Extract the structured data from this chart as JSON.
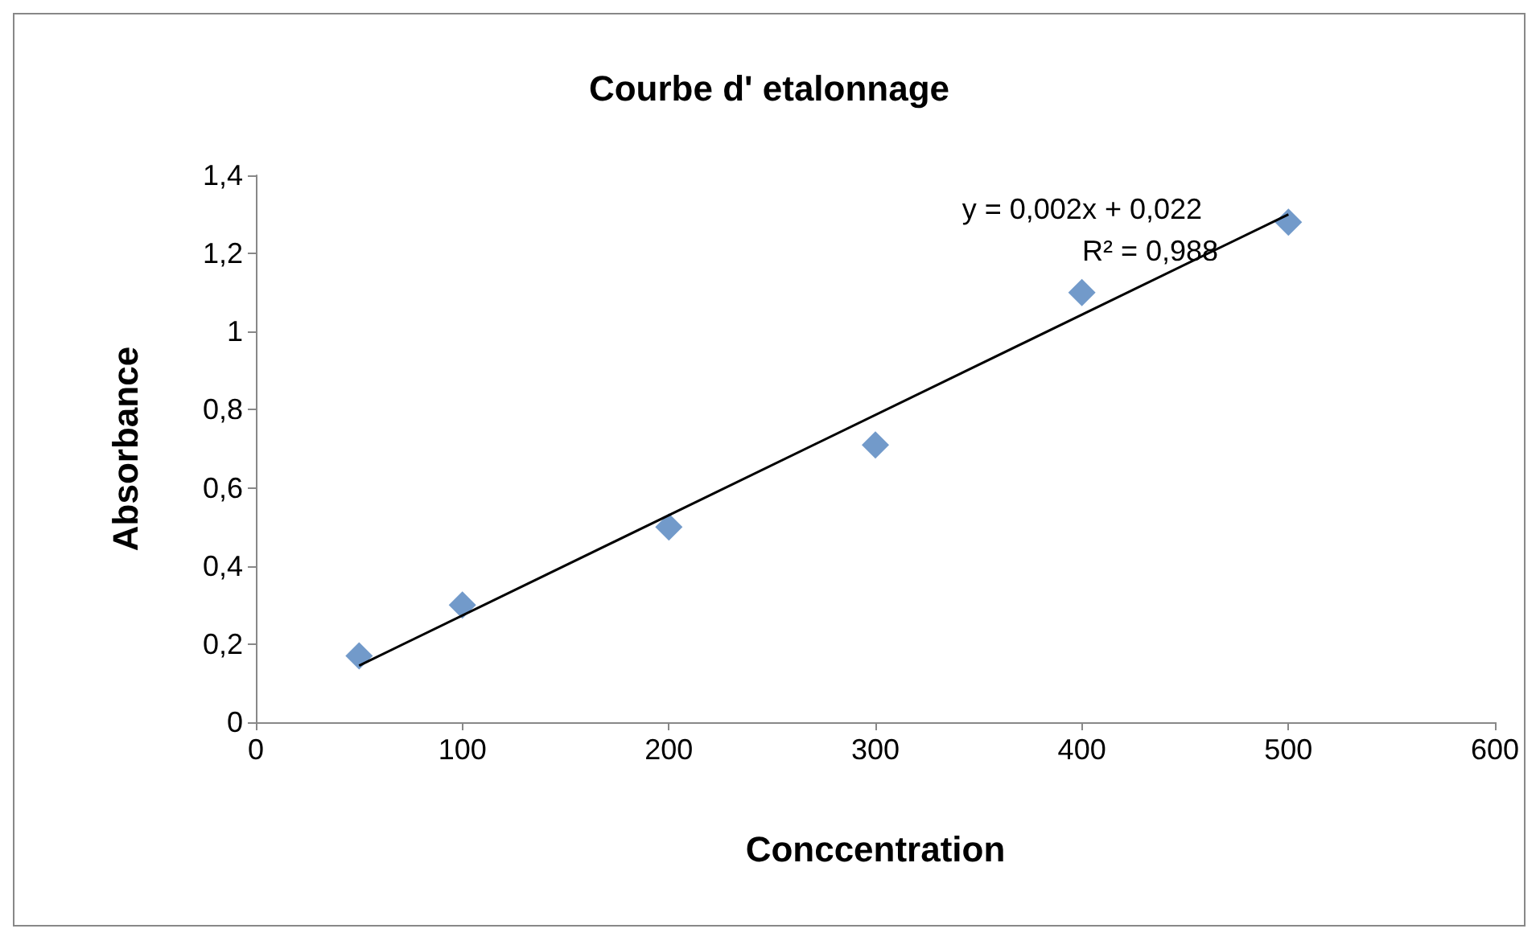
{
  "chart_data": {
    "type": "scatter",
    "title": "Courbe d' etalonnage",
    "xlabel": "Conccentration",
    "ylabel": "Absorbance",
    "x": [
      50,
      100,
      200,
      300,
      400,
      500
    ],
    "series": [
      {
        "type": "scatter",
        "color": "#4f81bd",
        "marker": "diamond",
        "values": [
          0.17,
          0.3,
          0.5,
          0.71,
          1.1,
          1.28
        ]
      },
      {
        "type": "line",
        "color": "#000000",
        "marker": "none",
        "x": [
          50,
          500
        ],
        "values": [
          0.145,
          1.3
        ]
      }
    ],
    "annotations": [
      "y = 0,002x + 0,022",
      "R² = 0,988"
    ],
    "xlim": [
      0,
      600
    ],
    "xticks": [
      0,
      100,
      200,
      300,
      400,
      500,
      600
    ],
    "ylim": [
      0,
      1.4
    ],
    "yticks": [
      {
        "value": 0,
        "label": "0"
      },
      {
        "value": 0.2,
        "label": "0,2"
      },
      {
        "value": 0.4,
        "label": "0,4"
      },
      {
        "value": 0.6,
        "label": "0,6"
      },
      {
        "value": 0.8,
        "label": "0,8"
      },
      {
        "value": 1,
        "label": "1"
      },
      {
        "value": 1.2,
        "label": "1,2"
      },
      {
        "value": 1.4,
        "label": "1,4"
      }
    ],
    "grid": false
  }
}
